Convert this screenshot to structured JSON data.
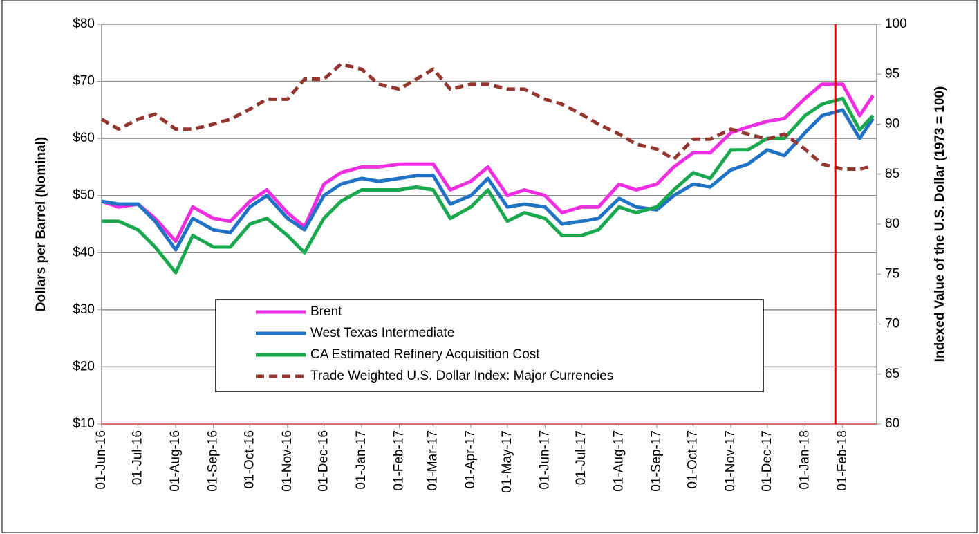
{
  "chart_data": {
    "type": "line",
    "y_label": "Dollars per Barrel (Nominal)",
    "y2_label": "Indexed Value of the U.S. Dollar (1973 = 100)",
    "x": [
      "2016-06-01",
      "2016-06-15",
      "2016-07-01",
      "2016-07-15",
      "2016-08-01",
      "2016-08-15",
      "2016-09-01",
      "2016-09-15",
      "2016-10-01",
      "2016-10-15",
      "2016-11-01",
      "2016-11-15",
      "2016-12-01",
      "2016-12-15",
      "2017-01-01",
      "2017-01-15",
      "2017-02-01",
      "2017-02-15",
      "2017-03-01",
      "2017-03-15",
      "2017-04-01",
      "2017-04-15",
      "2017-05-01",
      "2017-05-15",
      "2017-06-01",
      "2017-06-15",
      "2017-07-01",
      "2017-07-15",
      "2017-08-01",
      "2017-08-15",
      "2017-09-01",
      "2017-09-15",
      "2017-10-01",
      "2017-10-15",
      "2017-11-01",
      "2017-11-15",
      "2017-12-01",
      "2017-12-15",
      "2018-01-01",
      "2018-01-15",
      "2018-02-01",
      "2018-02-15",
      "2018-02-26"
    ],
    "series": [
      {
        "name": "Brent",
        "color": "#ee2ee0",
        "values": [
          49,
          48,
          48.5,
          46,
          42,
          48,
          46,
          45.5,
          49,
          51,
          47,
          44.5,
          52,
          54,
          55,
          55,
          55.5,
          55.5,
          55.5,
          51,
          52.5,
          55,
          50,
          51,
          50,
          47,
          48,
          48,
          52,
          51,
          52,
          55,
          57.5,
          57.5,
          61,
          62,
          63,
          63.5,
          67,
          69.5,
          69.5,
          64,
          67.5
        ]
      },
      {
        "name": "West Texas Intermediate",
        "color": "#1f72c4",
        "values": [
          49,
          48.5,
          48.5,
          45.5,
          40.5,
          46,
          44,
          43.5,
          48,
          50,
          46,
          44,
          50,
          52,
          53,
          52.5,
          53,
          53.5,
          53.5,
          48.5,
          50,
          53,
          48,
          48.5,
          48,
          45,
          45.5,
          46,
          49.5,
          48,
          47.5,
          50,
          52,
          51.5,
          54.5,
          55.5,
          58,
          57,
          61,
          64,
          65,
          60,
          63.5
        ]
      },
      {
        "name": "CA Estimated Refinery Acquisition Cost",
        "color": "#1aa84e",
        "values": [
          45.5,
          45.5,
          44,
          41,
          36.5,
          43,
          41,
          41,
          45,
          46,
          43,
          40,
          46,
          49,
          51,
          51,
          51,
          51.5,
          51,
          46,
          48,
          51,
          45.5,
          47,
          46,
          43,
          43,
          44,
          48,
          47,
          48,
          51,
          54,
          53,
          58,
          58,
          60,
          60,
          64,
          66,
          67,
          61.5,
          64
        ]
      },
      {
        "name": "Trade Weighted U.S. Dollar Index: Major Currencies",
        "color": "#93362f",
        "style": "dashed",
        "axis": "y2",
        "values": [
          90.5,
          89.5,
          90.5,
          91,
          89.5,
          89.5,
          90,
          90.5,
          91.5,
          92.5,
          92.5,
          94.5,
          94.5,
          96,
          95.5,
          94,
          93.5,
          94.5,
          95.5,
          93.5,
          94,
          94,
          93.5,
          93.5,
          92.5,
          92,
          91,
          90,
          89,
          88,
          87.5,
          86.5,
          88.5,
          88.5,
          89.5,
          89,
          88.5,
          89,
          87.5,
          86,
          85.5,
          85.5,
          85.8
        ]
      }
    ],
    "xlim": [
      "2016-06-01",
      "2018-03-01"
    ],
    "xticks": [
      {
        "value": "2016-06-01",
        "label": "01-Jun-16"
      },
      {
        "value": "2016-07-01",
        "label": "01-Jul-16"
      },
      {
        "value": "2016-08-01",
        "label": "01-Aug-16"
      },
      {
        "value": "2016-09-01",
        "label": "01-Sep-16"
      },
      {
        "value": "2016-10-01",
        "label": "01-Oct-16"
      },
      {
        "value": "2016-11-01",
        "label": "01-Nov-16"
      },
      {
        "value": "2016-12-01",
        "label": "01-Dec-16"
      },
      {
        "value": "2017-01-01",
        "label": "01-Jan-17"
      },
      {
        "value": "2017-02-01",
        "label": "01-Feb-17"
      },
      {
        "value": "2017-03-01",
        "label": "01-Mar-17"
      },
      {
        "value": "2017-04-01",
        "label": "01-Apr-17"
      },
      {
        "value": "2017-05-01",
        "label": "01-May-17"
      },
      {
        "value": "2017-06-01",
        "label": "01-Jun-17"
      },
      {
        "value": "2017-07-01",
        "label": "01-Jul-17"
      },
      {
        "value": "2017-08-01",
        "label": "01-Aug-17"
      },
      {
        "value": "2017-09-01",
        "label": "01-Sep-17"
      },
      {
        "value": "2017-10-01",
        "label": "01-Oct-17"
      },
      {
        "value": "2017-11-01",
        "label": "01-Nov-17"
      },
      {
        "value": "2017-12-01",
        "label": "01-Dec-17"
      },
      {
        "value": "2018-01-01",
        "label": "01-Jan-18"
      },
      {
        "value": "2018-02-01",
        "label": "01-Feb-18"
      }
    ],
    "ylim": [
      10,
      80
    ],
    "yticks": [
      {
        "value": 10,
        "label": "$10"
      },
      {
        "value": 20,
        "label": "$20"
      },
      {
        "value": 30,
        "label": "$30"
      },
      {
        "value": 40,
        "label": "$40"
      },
      {
        "value": 50,
        "label": "$50"
      },
      {
        "value": 60,
        "label": "$60"
      },
      {
        "value": 70,
        "label": "$70"
      },
      {
        "value": 80,
        "label": "$80"
      }
    ],
    "y2lim": [
      60,
      100
    ],
    "y2ticks": [
      60,
      65,
      70,
      75,
      80,
      85,
      90,
      95,
      100
    ],
    "grid": true,
    "marker_line": {
      "x": "2018-01-26",
      "color": "#e00000"
    }
  }
}
